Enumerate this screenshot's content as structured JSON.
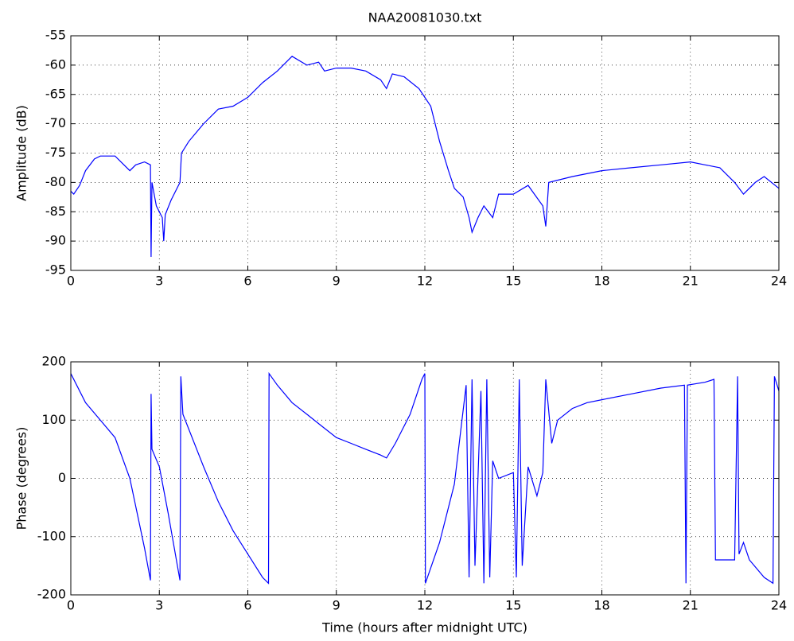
{
  "chart_data": [
    {
      "type": "line",
      "title": "NAA20081030.txt",
      "ylabel": "Amplitude (dB)",
      "x": [
        0,
        0.1,
        0.3,
        0.5,
        0.8,
        1.0,
        1.5,
        1.8,
        2.0,
        2.2,
        2.5,
        2.7,
        2.72,
        2.75,
        2.9,
        3.1,
        3.15,
        3.2,
        3.4,
        3.7,
        3.75,
        4.0,
        4.5,
        5.0,
        5.5,
        6.0,
        6.5,
        7.0,
        7.5,
        8.0,
        8.4,
        8.6,
        9.0,
        9.5,
        10.0,
        10.5,
        10.7,
        10.9,
        11.3,
        11.8,
        12.2,
        12.5,
        12.8,
        13.0,
        13.3,
        13.5,
        13.6,
        13.8,
        14.0,
        14.3,
        14.5,
        15.0,
        15.5,
        16.0,
        16.1,
        16.2,
        17.0,
        18.0,
        19.0,
        20.0,
        21.0,
        21.5,
        22.0,
        22.5,
        22.8,
        23.2,
        23.5,
        24.0
      ],
      "values": [
        -81.5,
        -82,
        -80.5,
        -78,
        -76,
        -75.5,
        -75.5,
        -77,
        -78,
        -77,
        -76.5,
        -77,
        -92.7,
        -80,
        -84,
        -86,
        -90,
        -85.5,
        -83,
        -80,
        -75,
        -73,
        -70,
        -67.5,
        -67,
        -65.5,
        -63,
        -61,
        -58.5,
        -60,
        -59.5,
        -61,
        -60.5,
        -60.5,
        -61,
        -62.5,
        -64,
        -61.5,
        -62,
        -64,
        -67,
        -73,
        -78,
        -81,
        -82.5,
        -86,
        -88.5,
        -86,
        -84,
        -86,
        -82,
        -82,
        -80.5,
        -84,
        -87.5,
        -80,
        -79,
        -78,
        -77.5,
        -77,
        -76.5,
        -77,
        -77.5,
        -80,
        -82,
        -80,
        -79,
        -81
      ],
      "color": "#0000ff",
      "xlim": [
        0,
        24
      ],
      "xticks": [
        0,
        3,
        6,
        9,
        12,
        15,
        18,
        21,
        24
      ],
      "ylim": [
        -95,
        -55
      ],
      "yticks": [
        -95,
        -90,
        -85,
        -80,
        -75,
        -70,
        -65,
        -60,
        -55
      ],
      "grid": true
    },
    {
      "type": "line",
      "xlabel": "Time (hours after midnight UTC)",
      "ylabel": "Phase (degrees)",
      "x": [
        0,
        0.5,
        1.0,
        1.5,
        2.0,
        2.5,
        2.7,
        2.72,
        2.75,
        3.0,
        3.3,
        3.7,
        3.73,
        3.8,
        4.5,
        5.0,
        5.5,
        6.0,
        6.5,
        6.7,
        6.72,
        7.0,
        7.5,
        8.0,
        8.5,
        9.0,
        9.5,
        10.0,
        10.5,
        10.7,
        11.0,
        11.5,
        11.9,
        12.0,
        12.02,
        12.5,
        13.0,
        13.4,
        13.5,
        13.6,
        13.7,
        13.9,
        14.0,
        14.1,
        14.2,
        14.3,
        14.5,
        15.0,
        15.1,
        15.2,
        15.3,
        15.5,
        15.8,
        16.0,
        16.1,
        16.3,
        16.5,
        17.0,
        17.5,
        18.0,
        19.0,
        20.0,
        20.8,
        20.85,
        20.9,
        21.5,
        21.8,
        21.85,
        22.5,
        22.6,
        22.65,
        22.8,
        23.0,
        23.5,
        23.8,
        23.85,
        24.0
      ],
      "values": [
        180,
        130,
        100,
        70,
        0,
        -120,
        -175,
        145,
        50,
        20,
        -60,
        -175,
        175,
        110,
        20,
        -40,
        -90,
        -130,
        -170,
        -180,
        180,
        160,
        130,
        110,
        90,
        70,
        60,
        50,
        40,
        35,
        60,
        110,
        170,
        180,
        -180,
        -110,
        -10,
        160,
        -170,
        170,
        -150,
        150,
        -180,
        170,
        -170,
        30,
        0,
        10,
        -170,
        170,
        -150,
        20,
        -30,
        10,
        170,
        60,
        100,
        120,
        130,
        135,
        145,
        155,
        160,
        -180,
        160,
        165,
        170,
        -140,
        -140,
        175,
        -130,
        -110,
        -140,
        -170,
        -180,
        175,
        150
      ],
      "color": "#0000ff",
      "xlim": [
        0,
        24
      ],
      "xticks": [
        0,
        3,
        6,
        9,
        12,
        15,
        18,
        21,
        24
      ],
      "ylim": [
        -200,
        200
      ],
      "yticks": [
        -200,
        -100,
        0,
        100,
        200
      ],
      "grid": true
    }
  ]
}
